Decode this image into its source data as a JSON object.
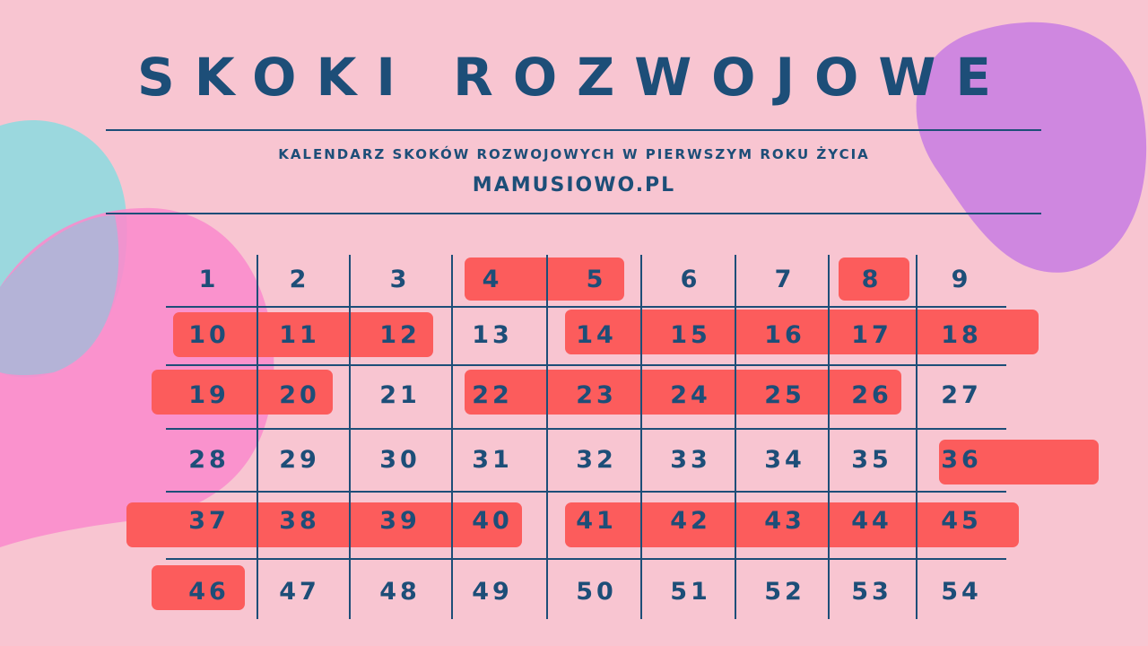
{
  "header": {
    "title": "SKOKI ROZWOJOWE",
    "subtitle": "KALENDARZ SKOKÓW ROZWOJOWYCH W PIERWSZYM ROKU ŻYCIA",
    "site": "MAMUSIOWO.PL"
  },
  "calendar": {
    "weeks": [
      "1",
      "2",
      "3",
      "4",
      "5",
      "6",
      "7",
      "8",
      "9",
      "10",
      "11",
      "12",
      "13",
      "14",
      "15",
      "16",
      "17",
      "18",
      "19",
      "20",
      "21",
      "22",
      "23",
      "24",
      "25",
      "26",
      "27",
      "28",
      "29",
      "30",
      "31",
      "32",
      "33",
      "34",
      "35",
      "36",
      "37",
      "38",
      "39",
      "40",
      "41",
      "42",
      "43",
      "44",
      "45",
      "46",
      "47",
      "48",
      "49",
      "50",
      "51",
      "52",
      "53",
      "54"
    ],
    "highlighted_weeks": [
      4,
      5,
      8,
      10,
      11,
      12,
      14,
      15,
      16,
      17,
      18,
      19,
      20,
      22,
      23,
      24,
      25,
      26,
      36,
      37,
      38,
      39,
      40,
      41,
      42,
      43,
      44,
      45,
      46
    ]
  },
  "colors": {
    "background": "#f8c5d1",
    "text": "#1d4e78",
    "highlight": "#fc5c5c",
    "blob_purple": "#cf87e0",
    "blob_teal": "#9bd8de",
    "blob_pink": "#f98ccc"
  }
}
